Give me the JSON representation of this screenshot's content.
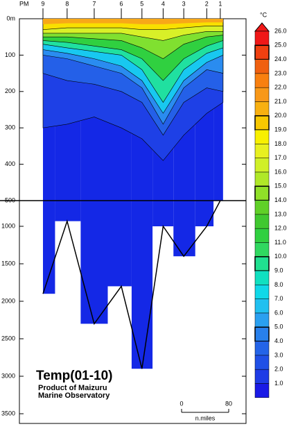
{
  "chart_data": {
    "type": "section",
    "title": "Temp(01-10)",
    "credit_1": "Product of Maizuru",
    "credit_2": "Marine Observatory",
    "x_label": "PM",
    "stations": [
      9,
      8,
      7,
      6,
      5,
      4,
      3,
      2,
      1
    ],
    "distance": [
      0,
      41,
      87,
      133,
      168,
      204,
      239,
      278,
      301
    ],
    "yticks": [
      {
        "value": 0,
        "label": "0m"
      },
      100,
      200,
      300,
      400,
      500,
      1000,
      1500,
      2000,
      2500,
      3000,
      3500
    ],
    "surface_color": "#f8a818",
    "bands": [
      {
        "temp": 20,
        "color": "#f8e000",
        "depths": [
          30,
          25,
          25,
          25,
          30,
          30,
          25,
          20,
          20
        ]
      },
      {
        "temp": 17,
        "color": "#d8f028",
        "depths": [
          40,
          40,
          40,
          40,
          50,
          60,
          45,
          35,
          35
        ]
      },
      {
        "temp": 15,
        "color": "#80e030",
        "depths": [
          50,
          50,
          55,
          60,
          80,
          110,
          70,
          50,
          45
        ]
      },
      {
        "temp": 12,
        "color": "#30d040",
        "depths": [
          60,
          65,
          75,
          85,
          110,
          170,
          110,
          75,
          60
        ]
      },
      {
        "temp": 10,
        "color": "#20e0a0",
        "depths": [
          70,
          80,
          90,
          100,
          140,
          230,
          140,
          95,
          80
        ]
      },
      {
        "temp": 7,
        "color": "#18c8f0",
        "depths": [
          85,
          95,
          110,
          130,
          170,
          260,
          170,
          120,
          100
        ]
      },
      {
        "temp": 5,
        "color": "#2a8cf0",
        "depths": [
          100,
          110,
          130,
          150,
          190,
          290,
          190,
          140,
          150
        ]
      },
      {
        "temp": 3,
        "color": "#2460e8",
        "depths": [
          150,
          170,
          180,
          200,
          230,
          320,
          230,
          190,
          200
        ]
      },
      {
        "temp": 2,
        "color": "#1e40e6",
        "depths": [
          300,
          290,
          270,
          300,
          330,
          390,
          320,
          260,
          230
        ]
      }
    ],
    "deep_color": "#1428e6",
    "bottom": [
      1900,
      900,
      2300,
      1800,
      2900,
      1000,
      1400,
      1000,
      500
    ],
    "scale": {
      "start": 0,
      "end": 80,
      "unit": "n.miles"
    },
    "colorbar": {
      "unit": "°C",
      "ticks": [
        {
          "value": 26,
          "label": "26.0"
        },
        {
          "value": 25,
          "label": "25.0"
        },
        {
          "value": 24,
          "label": "24.0"
        },
        {
          "value": 23,
          "label": "23.0"
        },
        {
          "value": 22,
          "label": "22.0"
        },
        {
          "value": 21,
          "label": "21.0"
        },
        {
          "value": 20,
          "label": "20.0"
        },
        {
          "value": 19,
          "label": "19.0"
        },
        {
          "value": 18,
          "label": "18.0"
        },
        {
          "value": 17,
          "label": "17.0"
        },
        {
          "value": 16,
          "label": "16.0"
        },
        {
          "value": 15,
          "label": "15.0"
        },
        {
          "value": 14,
          "label": "14.0"
        },
        {
          "value": 13,
          "label": "13.0"
        },
        {
          "value": 12,
          "label": "12.0"
        },
        {
          "value": 11,
          "label": "11.0"
        },
        {
          "value": 10,
          "label": "10.0"
        },
        {
          "value": 9,
          "label": "9.0"
        },
        {
          "value": 8,
          "label": "8.0"
        },
        {
          "value": 7,
          "label": "7.0"
        },
        {
          "value": 6,
          "label": "6.0"
        },
        {
          "value": 5,
          "label": "5.0"
        },
        {
          "value": 4,
          "label": "4.0"
        },
        {
          "value": 3,
          "label": "3.0"
        },
        {
          "value": 2,
          "label": "2.0"
        },
        {
          "value": 1,
          "label": "1.0"
        }
      ],
      "colors": [
        "#f01818",
        "#f04010",
        "#f06010",
        "#f88010",
        "#f89818",
        "#f8b010",
        "#f8c800",
        "#f8f000",
        "#e8f020",
        "#d0f028",
        "#b0e828",
        "#90e028",
        "#60d028",
        "#40c830",
        "#30d040",
        "#30d860",
        "#20e090",
        "#10e0c0",
        "#10d8e8",
        "#20c0f0",
        "#2aa0f0",
        "#2880ec",
        "#2464e8",
        "#2050e6",
        "#1e3ce6",
        "#1a1ae6"
      ]
    }
  }
}
